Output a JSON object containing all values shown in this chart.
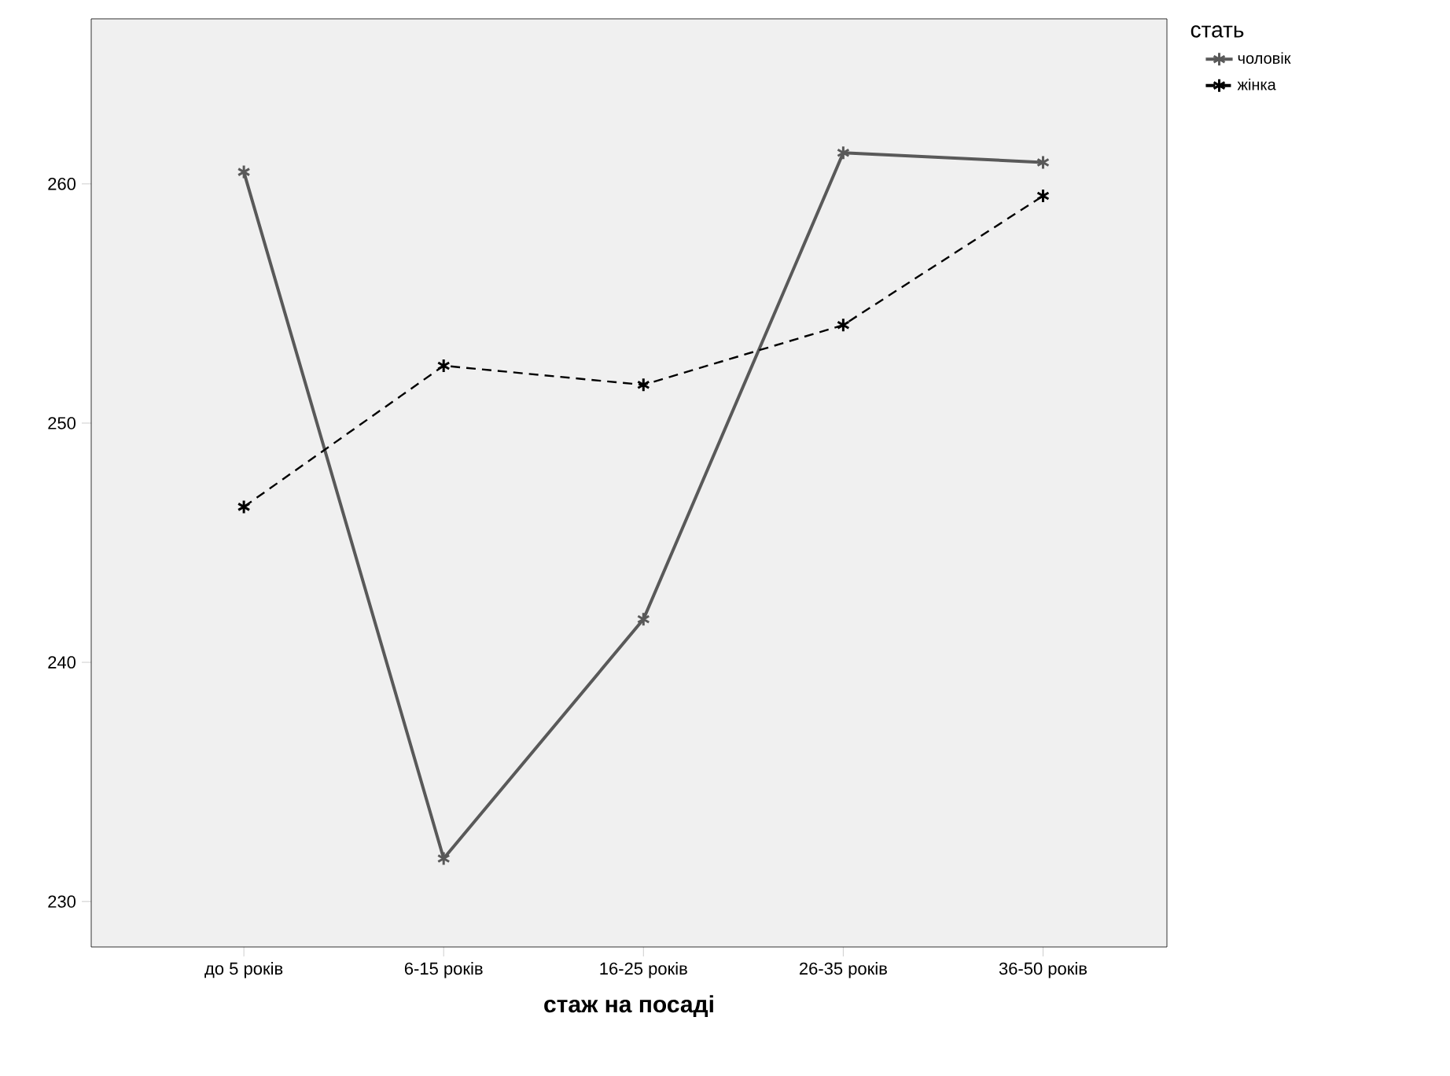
{
  "chart_data": {
    "type": "line",
    "xlabel": "стаж на посаді",
    "legend_title": "стать",
    "legend": "top right",
    "marker": "cross",
    "categories": [
      "до 5 років",
      "6-15 років",
      "16-25 років",
      "26-35 років",
      "36-50 років"
    ],
    "ylim": [
      228.1,
      266.9
    ],
    "yticks": [
      230,
      240,
      250,
      260
    ],
    "series": [
      {
        "name": "чоловік",
        "color": "#595959",
        "line_style": "solid",
        "values": [
          260.5,
          231.8,
          241.8,
          261.3,
          260.9
        ]
      },
      {
        "name": "жінка",
        "color": "#000000",
        "line_style": "dashed",
        "values": [
          246.5,
          252.4,
          251.6,
          254.1,
          259.5
        ]
      }
    ]
  }
}
